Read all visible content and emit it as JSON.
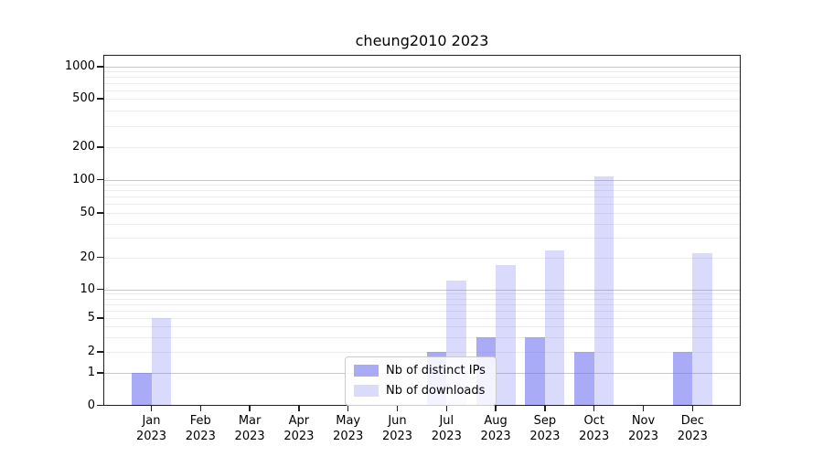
{
  "title": "cheung2010 2023",
  "legend": {
    "items": [
      {
        "label": "Nb of distinct IPs",
        "color": "rgba(106,110,242,0.58)"
      },
      {
        "label": "Nb of downloads",
        "color": "rgba(106,110,242,0.25)"
      }
    ],
    "position": "lower center"
  },
  "chart_data": {
    "type": "bar",
    "title": "cheung2010 2023",
    "xlabel": "",
    "ylabel": "",
    "categories": [
      "Jan",
      "Feb",
      "Mar",
      "Apr",
      "May",
      "Jun",
      "Jul",
      "Aug",
      "Sep",
      "Oct",
      "Nov",
      "Dec"
    ],
    "year_label": "2023",
    "series": [
      {
        "name": "Nb of distinct IPs",
        "color": "rgba(106,110,242,0.58)",
        "values": [
          1,
          0,
          0,
          0,
          0,
          0,
          2,
          3,
          3,
          2,
          0,
          2
        ]
      },
      {
        "name": "Nb of downloads",
        "color": "rgba(106,110,242,0.25)",
        "values": [
          5,
          0,
          0,
          0,
          0,
          0,
          12,
          17,
          23,
          108,
          0,
          22
        ]
      }
    ],
    "y_scale": "symlog",
    "y_ticks": [
      0,
      1,
      2,
      5,
      10,
      20,
      50,
      100,
      200,
      500,
      1000
    ],
    "ylim": [
      0,
      1300
    ],
    "grid": true,
    "grid_major_values": [
      1,
      10,
      100,
      1000
    ],
    "colors": {
      "grid_major": "#c8c8c8",
      "grid_minor": "#ececec",
      "axis": "#1f1f1f"
    }
  }
}
